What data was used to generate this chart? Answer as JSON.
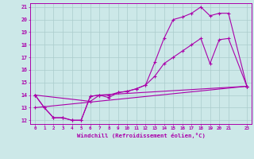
{
  "xlabel": "Windchill (Refroidissement éolien,°C)",
  "xlim": [
    -0.5,
    23.5
  ],
  "ylim": [
    11.7,
    21.3
  ],
  "xticks": [
    0,
    1,
    2,
    3,
    4,
    5,
    6,
    7,
    8,
    9,
    10,
    11,
    12,
    13,
    14,
    15,
    16,
    17,
    18,
    19,
    20,
    21,
    23
  ],
  "xtick_labels": [
    "0",
    "1",
    "2",
    "3",
    "4",
    "5",
    "6",
    "7",
    "8",
    "9",
    "10",
    "11",
    "12",
    "13",
    "14",
    "15",
    "16",
    "17",
    "18",
    "19",
    "20",
    "21",
    "23"
  ],
  "yticks": [
    12,
    13,
    14,
    15,
    16,
    17,
    18,
    19,
    20,
    21
  ],
  "bg_color": "#cce8e8",
  "line_color": "#aa00aa",
  "grid_color": "#aacccc",
  "line1_x": [
    0,
    1,
    2,
    3,
    4,
    5,
    6,
    7,
    8,
    9,
    10,
    11,
    12,
    13,
    14,
    15,
    16,
    17,
    18,
    19,
    20,
    21,
    23
  ],
  "line1_y": [
    14,
    13,
    12.2,
    12.2,
    12.0,
    12.0,
    13.9,
    14.0,
    13.8,
    14.2,
    14.3,
    14.5,
    14.8,
    16.6,
    18.5,
    20.0,
    20.2,
    20.5,
    21.0,
    20.3,
    20.5,
    20.5,
    14.7
  ],
  "line2_x": [
    0,
    6,
    7,
    8,
    9,
    10,
    11,
    12,
    13,
    14,
    15,
    16,
    17,
    18,
    19,
    20,
    21,
    23
  ],
  "line2_y": [
    14,
    13.5,
    14.0,
    14.0,
    14.2,
    14.3,
    14.5,
    14.8,
    15.5,
    16.5,
    17.0,
    17.5,
    18.0,
    18.5,
    16.5,
    18.4,
    18.5,
    14.7
  ],
  "line3_x": [
    0,
    1,
    2,
    3,
    4,
    5,
    6,
    7,
    23
  ],
  "line3_y": [
    14,
    13,
    12.2,
    12.2,
    12.0,
    12.0,
    13.9,
    14.0,
    14.7
  ],
  "line4_x": [
    0,
    23
  ],
  "line4_y": [
    13.0,
    14.7
  ]
}
